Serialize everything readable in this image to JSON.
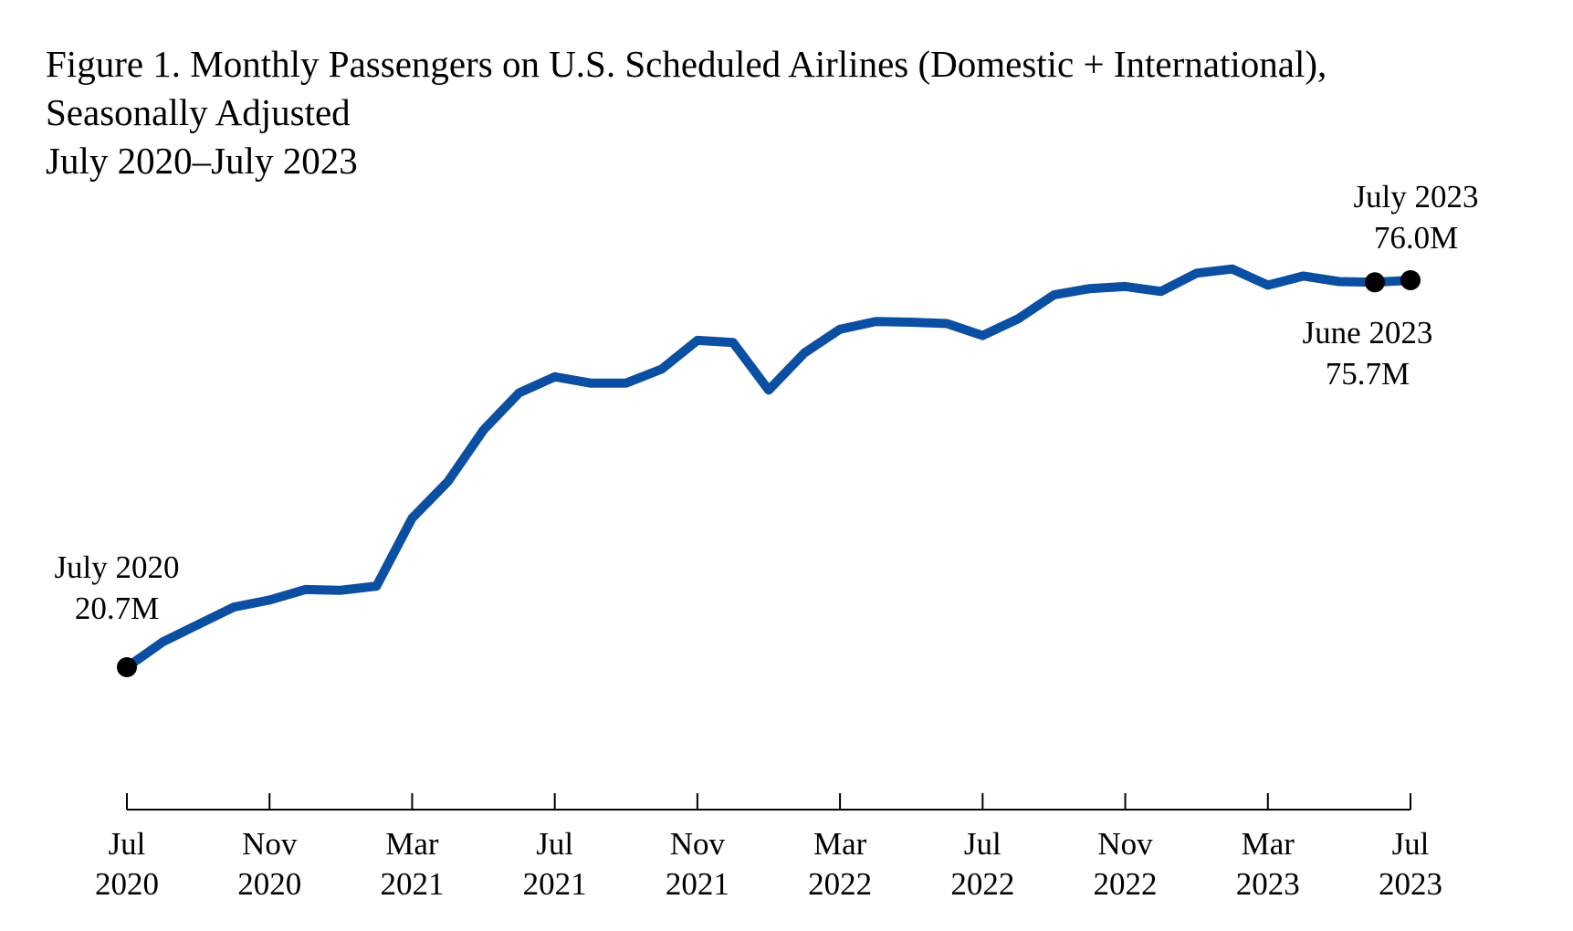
{
  "chart_data": {
    "type": "line",
    "title": "Figure 1. Monthly Passengers on U.S. Scheduled Airlines (Domestic + International),",
    "subtitle": "Seasonally Adjusted",
    "subtitle2": "July 2020–July 2023",
    "xlabel": "",
    "ylabel": "",
    "ylim": [
      0,
      85
    ],
    "grid": false,
    "color": "#0B4FA3",
    "x_ticks": [
      {
        "month": "Jul",
        "year": "2020"
      },
      {
        "month": "Nov",
        "year": "2020"
      },
      {
        "month": "Mar",
        "year": "2021"
      },
      {
        "month": "Jul",
        "year": "2021"
      },
      {
        "month": "Nov",
        "year": "2021"
      },
      {
        "month": "Mar",
        "year": "2022"
      },
      {
        "month": "Jul",
        "year": "2022"
      },
      {
        "month": "Nov",
        "year": "2022"
      },
      {
        "month": "Mar",
        "year": "2023"
      },
      {
        "month": "Jul",
        "year": "2023"
      }
    ],
    "series": [
      {
        "name": "Monthly passengers (millions)",
        "x": [
          "Jul 2020",
          "Aug 2020",
          "Sep 2020",
          "Oct 2020",
          "Nov 2020",
          "Dec 2020",
          "Jan 2021",
          "Feb 2021",
          "Mar 2021",
          "Apr 2021",
          "May 2021",
          "Jun 2021",
          "Jul 2021",
          "Aug 2021",
          "Sep 2021",
          "Oct 2021",
          "Nov 2021",
          "Dec 2021",
          "Jan 2022",
          "Feb 2022",
          "Mar 2022",
          "Apr 2022",
          "May 2022",
          "Jun 2022",
          "Jul 2022",
          "Aug 2022",
          "Sep 2022",
          "Oct 2022",
          "Nov 2022",
          "Dec 2022",
          "Jan 2023",
          "Feb 2023",
          "Mar 2023",
          "Apr 2023",
          "May 2023",
          "Jun 2023",
          "Jul 2023"
        ],
        "values": [
          20.7,
          24.3,
          26.8,
          29.3,
          30.3,
          31.8,
          31.7,
          32.3,
          42.0,
          47.2,
          54.6,
          59.9,
          62.2,
          61.3,
          61.3,
          63.3,
          67.4,
          67.1,
          60.3,
          65.6,
          69.0,
          70.1,
          70.0,
          69.8,
          68.1,
          70.5,
          73.9,
          74.8,
          75.1,
          74.4,
          77.0,
          77.6,
          75.3,
          76.6,
          75.8,
          75.7,
          76.0
        ]
      }
    ],
    "annotations": [
      {
        "label": "July 2020",
        "value": "20.7M"
      },
      {
        "label": "July 2023",
        "value": "76.0M"
      },
      {
        "label": "June 2023",
        "value": "75.7M"
      }
    ]
  }
}
